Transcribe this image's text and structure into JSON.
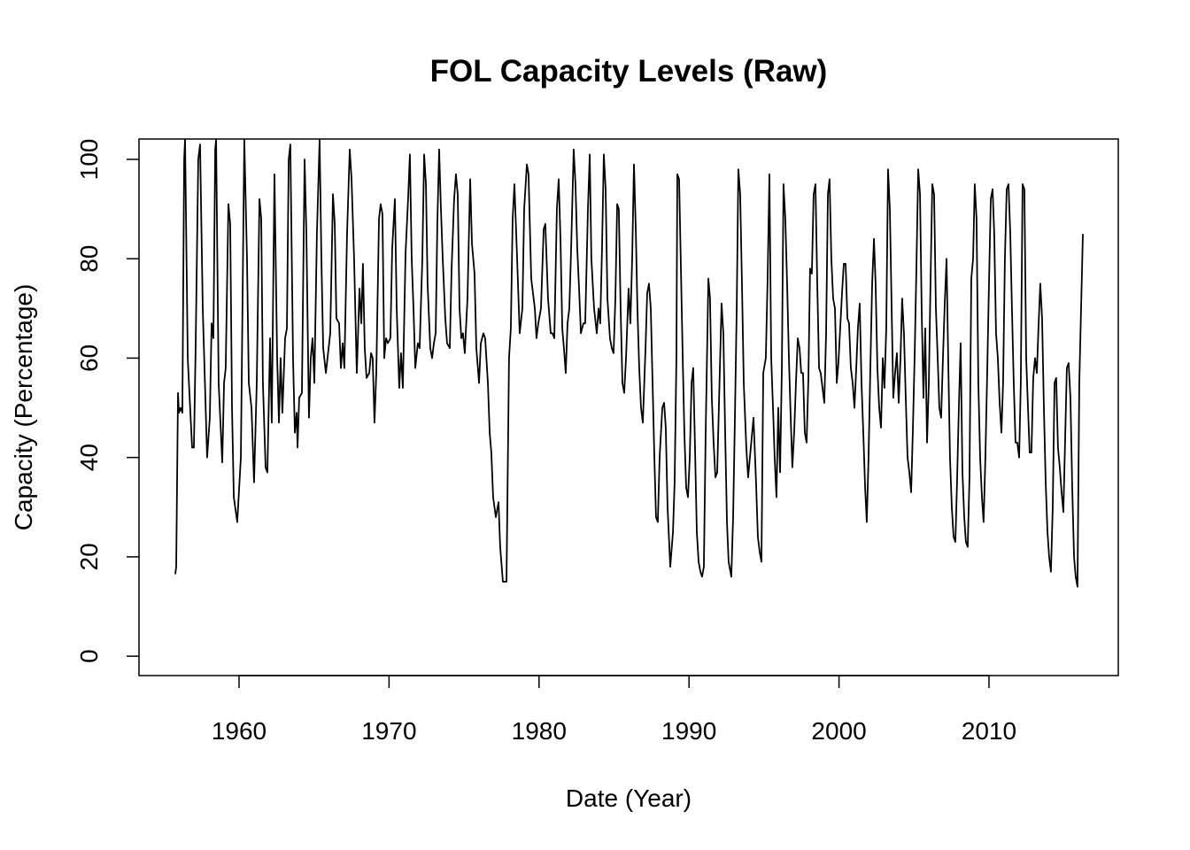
{
  "chart_data": {
    "type": "line",
    "title": "FOL Capacity Levels (Raw)",
    "x_label": "Date (Year)",
    "y_label": "Capacity (Percentage)",
    "color": "#000000",
    "xlim": [
      1953.33,
      2018.62
    ],
    "ylim": [
      -3.9,
      104.1
    ],
    "xticks": [
      1960,
      1970,
      1980,
      1990,
      2000,
      2010
    ],
    "yticks": [
      0,
      20,
      40,
      60,
      80,
      100
    ],
    "x": [
      1955.75,
      1955.81,
      1955.93,
      1955.99,
      1956.1,
      1956.22,
      1956.34,
      1956.4,
      1956.58,
      1956.69,
      1956.87,
      1956.99,
      1957.11,
      1957.28,
      1957.4,
      1957.58,
      1957.87,
      1958.05,
      1958.17,
      1958.29,
      1958.41,
      1958.47,
      1958.64,
      1958.88,
      1959.0,
      1959.11,
      1959.29,
      1959.41,
      1959.53,
      1959.65,
      1959.88,
      1960.12,
      1960.35,
      1960.53,
      1960.65,
      1960.83,
      1961.0,
      1961.18,
      1961.36,
      1961.48,
      1961.59,
      1961.77,
      1961.89,
      1962.07,
      1962.18,
      1962.36,
      1962.54,
      1962.66,
      1962.77,
      1962.89,
      1963.07,
      1963.19,
      1963.31,
      1963.42,
      1963.6,
      1963.72,
      1963.84,
      1963.9,
      1964.01,
      1964.19,
      1964.37,
      1964.49,
      1964.66,
      1964.78,
      1964.9,
      1965.02,
      1965.19,
      1965.37,
      1965.49,
      1965.61,
      1965.79,
      1966.08,
      1966.26,
      1966.38,
      1966.49,
      1966.67,
      1966.79,
      1966.91,
      1967.02,
      1967.2,
      1967.38,
      1967.5,
      1967.67,
      1967.85,
      1968.03,
      1968.15,
      1968.26,
      1968.38,
      1968.5,
      1968.68,
      1968.8,
      1968.91,
      1969.03,
      1969.15,
      1969.33,
      1969.44,
      1969.56,
      1969.68,
      1969.8,
      1969.92,
      1970.09,
      1970.21,
      1970.39,
      1970.51,
      1970.68,
      1970.8,
      1970.92,
      1971.1,
      1971.27,
      1971.39,
      1971.51,
      1971.63,
      1971.75,
      1971.92,
      1972.04,
      1972.22,
      1972.34,
      1972.46,
      1972.57,
      1972.75,
      1972.87,
      1972.99,
      1973.11,
      1973.22,
      1973.34,
      1973.46,
      1973.58,
      1973.75,
      1973.87,
      1974.05,
      1974.17,
      1974.34,
      1974.46,
      1974.58,
      1974.7,
      1974.82,
      1974.93,
      1975.05,
      1975.23,
      1975.41,
      1975.53,
      1975.7,
      1975.82,
      1976.0,
      1976.12,
      1976.29,
      1976.41,
      1976.59,
      1976.71,
      1976.82,
      1976.94,
      1977.12,
      1977.3,
      1977.41,
      1977.59,
      1977.83,
      1978.0,
      1978.12,
      1978.24,
      1978.36,
      1978.54,
      1978.71,
      1978.89,
      1979.01,
      1979.19,
      1979.3,
      1979.48,
      1979.72,
      1979.83,
      1979.95,
      1980.13,
      1980.31,
      1980.42,
      1980.6,
      1980.78,
      1980.9,
      1981.02,
      1981.19,
      1981.31,
      1981.43,
      1981.55,
      1981.66,
      1981.78,
      1981.9,
      1982.02,
      1982.14,
      1982.31,
      1982.43,
      1982.55,
      1982.67,
      1982.79,
      1982.96,
      1983.08,
      1983.26,
      1983.38,
      1983.49,
      1983.67,
      1983.85,
      1983.97,
      1984.08,
      1984.2,
      1984.32,
      1984.44,
      1984.56,
      1984.73,
      1984.85,
      1984.97,
      1985.09,
      1985.21,
      1985.32,
      1985.44,
      1985.56,
      1985.68,
      1985.8,
      1985.97,
      1986.09,
      1986.21,
      1986.33,
      1986.45,
      1986.56,
      1986.68,
      1986.8,
      1986.92,
      1987.1,
      1987.21,
      1987.33,
      1987.45,
      1987.57,
      1987.69,
      1987.8,
      1987.92,
      1988.04,
      1988.22,
      1988.34,
      1988.45,
      1988.57,
      1988.75,
      1988.93,
      1989.04,
      1989.16,
      1989.22,
      1989.34,
      1989.46,
      1989.58,
      1989.69,
      1989.81,
      1989.93,
      1990.05,
      1990.17,
      1990.28,
      1990.4,
      1990.52,
      1990.64,
      1990.76,
      1990.87,
      1990.99,
      1991.11,
      1991.29,
      1991.4,
      1991.52,
      1991.64,
      1991.76,
      1991.88,
      1991.99,
      1992.17,
      1992.29,
      1992.41,
      1992.53,
      1992.64,
      1992.82,
      1992.94,
      1993.06,
      1993.18,
      1993.29,
      1993.41,
      1993.53,
      1993.65,
      1993.82,
      1993.94,
      1994.06,
      1994.18,
      1994.3,
      1994.47,
      1994.59,
      1994.71,
      1994.83,
      1994.95,
      1995.12,
      1995.24,
      1995.36,
      1995.48,
      1995.6,
      1995.71,
      1995.83,
      1995.95,
      1996.07,
      1996.19,
      1996.3,
      1996.42,
      1996.54,
      1996.66,
      1996.78,
      1996.89,
      1997.01,
      1997.13,
      1997.25,
      1997.37,
      1997.48,
      1997.6,
      1997.72,
      1997.84,
      1997.96,
      1998.07,
      1998.19,
      1998.31,
      1998.43,
      1998.55,
      1998.67,
      1998.78,
      1998.9,
      1999.02,
      1999.14,
      1999.26,
      1999.37,
      1999.49,
      1999.61,
      1999.73,
      1999.85,
      1999.96,
      2000.08,
      2000.2,
      2000.32,
      2000.44,
      2000.56,
      2000.67,
      2000.79,
      2000.91,
      2001.03,
      2001.15,
      2001.26,
      2001.38,
      2001.5,
      2001.62,
      2001.74,
      2001.85,
      2001.97,
      2002.09,
      2002.21,
      2002.33,
      2002.44,
      2002.56,
      2002.68,
      2002.8,
      2002.92,
      2003.03,
      2003.15,
      2003.27,
      2003.39,
      2003.51,
      2003.62,
      2003.74,
      2003.86,
      2003.98,
      2004.1,
      2004.21,
      2004.33,
      2004.45,
      2004.57,
      2004.69,
      2004.81,
      2004.92,
      2005.04,
      2005.16,
      2005.28,
      2005.4,
      2005.51,
      2005.63,
      2005.75,
      2005.87,
      2005.99,
      2006.1,
      2006.22,
      2006.34,
      2006.46,
      2006.58,
      2006.69,
      2006.81,
      2006.93,
      2007.05,
      2007.17,
      2007.28,
      2007.4,
      2007.52,
      2007.64,
      2007.76,
      2007.87,
      2007.99,
      2008.11,
      2008.23,
      2008.35,
      2008.46,
      2008.58,
      2008.7,
      2008.82,
      2008.94,
      2009.05,
      2009.17,
      2009.29,
      2009.41,
      2009.53,
      2009.64,
      2009.76,
      2009.88,
      2010.0,
      2010.12,
      2010.24,
      2010.35,
      2010.47,
      2010.59,
      2010.71,
      2010.83,
      2010.94,
      2011.06,
      2011.18,
      2011.3,
      2011.42,
      2011.53,
      2011.65,
      2011.77,
      2011.89,
      2012.01,
      2012.12,
      2012.24,
      2012.36,
      2012.48,
      2012.6,
      2012.71,
      2012.83,
      2012.95,
      2013.07,
      2013.19,
      2013.31,
      2013.42,
      2013.54,
      2013.66,
      2013.78,
      2013.9,
      2014.01,
      2014.13,
      2014.25,
      2014.37,
      2014.48,
      2014.6,
      2014.72,
      2014.84,
      2014.96,
      2015.08,
      2015.19,
      2015.31,
      2015.43,
      2015.55,
      2015.67,
      2015.78,
      2015.9,
      2016.02,
      2016.14,
      2016.26
    ],
    "values": [
      16.5,
      18,
      53,
      49,
      50,
      49,
      100,
      104,
      60,
      53,
      42,
      42,
      63,
      100,
      103,
      70,
      40,
      48,
      67,
      64,
      102,
      104,
      55,
      39,
      55,
      58,
      91,
      87,
      50,
      32,
      27,
      40,
      104,
      80,
      55,
      50,
      35,
      55,
      92,
      88,
      55,
      38,
      37,
      64,
      47,
      97,
      60,
      47,
      60,
      49,
      64,
      66,
      100,
      103,
      60,
      45,
      49,
      42,
      52,
      53,
      100,
      85,
      48,
      60,
      64,
      55,
      85,
      104,
      80,
      62,
      57,
      65,
      93,
      87,
      68,
      67,
      58,
      63,
      58,
      85,
      102,
      96,
      80,
      57,
      74,
      67,
      79,
      62,
      56,
      57,
      61,
      60,
      47,
      57,
      88,
      91,
      89,
      60,
      64,
      63,
      64,
      82,
      92,
      70,
      54,
      61,
      54,
      81,
      92,
      101,
      80,
      70,
      58,
      63,
      62,
      80,
      101,
      95,
      75,
      62,
      60,
      63,
      65,
      87,
      102,
      90,
      80,
      68,
      63,
      62,
      78,
      92,
      97,
      93,
      70,
      64,
      65,
      61,
      72,
      96,
      83,
      77,
      62,
      55,
      63,
      65,
      64,
      55,
      45,
      41,
      32,
      28,
      31,
      22,
      15,
      15,
      60,
      66,
      88,
      95,
      80,
      65,
      70,
      90,
      99,
      97,
      76,
      70,
      64,
      67,
      70,
      86,
      87,
      72,
      65,
      65,
      64,
      90,
      96,
      84,
      66,
      62,
      57,
      67,
      70,
      82,
      102,
      95,
      82,
      74,
      65,
      67,
      67,
      90,
      101,
      80,
      70,
      65,
      70,
      67,
      82,
      101,
      94,
      72,
      64,
      62,
      61,
      72,
      91,
      90,
      70,
      55,
      53,
      60,
      74,
      67,
      80,
      99,
      86,
      70,
      58,
      50,
      47,
      62,
      73,
      75,
      70,
      55,
      40,
      28,
      27,
      40,
      50,
      51,
      46,
      30,
      18,
      25,
      35,
      60,
      97,
      96,
      78,
      60,
      45,
      34,
      32,
      40,
      55,
      58,
      42,
      25,
      19,
      17,
      16,
      18,
      45,
      76,
      72,
      52,
      43,
      36,
      37,
      50,
      71,
      65,
      45,
      27,
      19,
      16,
      28,
      48,
      70,
      98,
      93,
      75,
      55,
      42,
      36,
      40,
      44,
      48,
      35,
      24,
      21,
      19,
      57,
      60,
      76,
      97,
      60,
      50,
      40,
      32,
      50,
      37,
      58,
      95,
      88,
      75,
      60,
      48,
      38,
      45,
      55,
      64,
      62,
      57,
      57,
      45,
      43,
      56,
      78,
      77,
      93,
      95,
      75,
      58,
      57,
      54,
      51,
      65,
      93,
      96,
      80,
      72,
      70,
      55,
      59,
      66,
      73,
      79,
      79,
      68,
      67,
      58,
      55,
      50,
      58,
      66,
      71,
      55,
      45,
      34,
      27,
      40,
      58,
      75,
      84,
      75,
      58,
      50,
      46,
      60,
      54,
      66,
      98,
      90,
      70,
      52,
      57,
      61,
      51,
      60,
      72,
      65,
      52,
      40,
      37,
      33,
      45,
      60,
      78,
      98,
      93,
      70,
      52,
      66,
      43,
      55,
      75,
      95,
      93,
      70,
      60,
      50,
      48,
      60,
      71,
      80,
      60,
      40,
      30,
      24,
      23,
      35,
      50,
      63,
      37,
      28,
      23,
      22,
      36,
      76,
      80,
      95,
      88,
      55,
      40,
      32,
      27,
      40,
      57,
      75,
      92,
      94,
      85,
      65,
      60,
      51,
      45,
      55,
      80,
      94,
      95,
      85,
      70,
      55,
      43,
      43,
      40,
      55,
      95,
      94,
      60,
      50,
      41,
      41,
      56,
      60,
      57,
      67,
      75,
      68,
      50,
      35,
      25,
      20,
      17,
      30,
      55,
      56,
      42,
      38,
      33,
      29,
      44,
      58,
      59,
      52,
      34,
      20,
      16,
      14,
      55,
      70,
      85
    ]
  }
}
